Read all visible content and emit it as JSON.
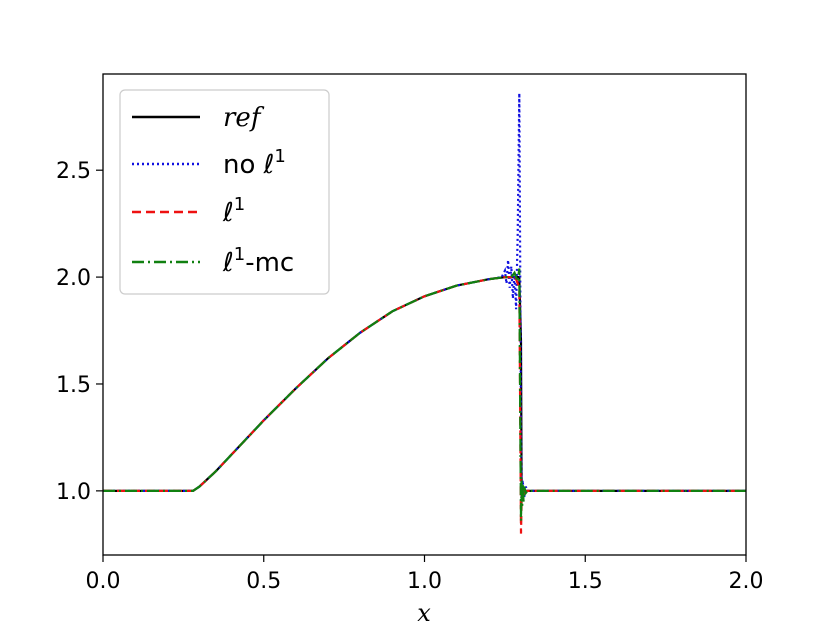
{
  "chart_data": {
    "type": "line",
    "xlabel": "x",
    "ylabel": "",
    "xlim": [
      0.0,
      2.0
    ],
    "ylim": [
      0.7,
      2.95
    ],
    "xticks": [
      "0.0",
      "0.5",
      "1.0",
      "1.5",
      "2.0"
    ],
    "xtick_values": [
      0.0,
      0.5,
      1.0,
      1.5,
      2.0
    ],
    "yticks": [
      "1.0",
      "1.5",
      "2.0",
      "2.5"
    ],
    "ytick_values": [
      1.0,
      1.5,
      2.0,
      2.5
    ],
    "grid": false,
    "legend_position": "top-left",
    "series": [
      {
        "name": "ref",
        "color": "#000000",
        "style": "solid",
        "x": [
          0.0,
          0.28,
          0.3,
          0.35,
          0.4,
          0.5,
          0.6,
          0.7,
          0.8,
          0.9,
          1.0,
          1.1,
          1.2,
          1.25,
          1.28,
          1.295,
          1.3,
          1.302,
          1.31,
          1.4,
          1.5,
          2.0
        ],
        "y": [
          1.0,
          1.0,
          1.02,
          1.09,
          1.17,
          1.33,
          1.48,
          1.62,
          1.74,
          1.84,
          1.91,
          1.96,
          1.99,
          2.0,
          2.0,
          2.0,
          1.7,
          1.0,
          1.0,
          1.0,
          1.0,
          1.0
        ]
      },
      {
        "name": "no ℓ1",
        "color": "#1010e0",
        "style": "dotted",
        "x": [
          0.0,
          0.28,
          0.3,
          0.35,
          0.4,
          0.5,
          0.6,
          0.7,
          0.8,
          0.9,
          1.0,
          1.1,
          1.2,
          1.24,
          1.25,
          1.255,
          1.26,
          1.265,
          1.27,
          1.275,
          1.28,
          1.285,
          1.29,
          1.295,
          1.3,
          1.302,
          1.305,
          1.31,
          1.315,
          1.32,
          1.4,
          1.5,
          2.0
        ],
        "y": [
          1.0,
          1.0,
          1.02,
          1.09,
          1.17,
          1.33,
          1.48,
          1.62,
          1.74,
          1.84,
          1.91,
          1.96,
          1.99,
          2.0,
          2.03,
          1.97,
          2.08,
          1.95,
          2.05,
          1.9,
          2.02,
          1.85,
          2.2,
          2.86,
          1.3,
          0.95,
          1.05,
          0.97,
          1.02,
          1.0,
          1.0,
          1.0,
          1.0
        ]
      },
      {
        "name": "ℓ1",
        "color": "#ee1111",
        "style": "dashed",
        "x": [
          0.0,
          0.28,
          0.3,
          0.35,
          0.4,
          0.5,
          0.6,
          0.7,
          0.8,
          0.9,
          1.0,
          1.1,
          1.2,
          1.25,
          1.27,
          1.28,
          1.29,
          1.295,
          1.298,
          1.3,
          1.302,
          1.305,
          1.31,
          1.32,
          1.4,
          1.5,
          2.0
        ],
        "y": [
          1.0,
          1.0,
          1.02,
          1.09,
          1.17,
          1.33,
          1.48,
          1.62,
          1.74,
          1.84,
          1.91,
          1.96,
          1.99,
          2.0,
          2.0,
          2.01,
          1.97,
          1.95,
          1.3,
          0.8,
          0.95,
          1.02,
          0.99,
          1.0,
          1.0,
          1.0,
          1.0
        ]
      },
      {
        "name": "ℓ1-mc",
        "color": "#108010",
        "style": "dashdot",
        "x": [
          0.0,
          0.28,
          0.3,
          0.35,
          0.4,
          0.5,
          0.6,
          0.7,
          0.8,
          0.9,
          1.0,
          1.1,
          1.2,
          1.25,
          1.27,
          1.28,
          1.29,
          1.295,
          1.298,
          1.3,
          1.302,
          1.304,
          1.306,
          1.308,
          1.31,
          1.315,
          1.32,
          1.4,
          1.5,
          2.0
        ],
        "y": [
          1.0,
          1.0,
          1.02,
          1.09,
          1.17,
          1.33,
          1.48,
          1.62,
          1.74,
          1.84,
          1.91,
          1.96,
          1.99,
          2.0,
          2.0,
          2.02,
          1.98,
          2.04,
          1.3,
          0.86,
          1.05,
          0.93,
          1.03,
          0.95,
          1.02,
          0.99,
          1.0,
          1.0,
          1.0,
          1.0
        ]
      }
    ]
  },
  "legend": {
    "items": [
      {
        "label": "ref",
        "italic": true
      },
      {
        "label": "no ℓ",
        "sup": "1",
        "italic": false
      },
      {
        "label": "ℓ",
        "sup": "1",
        "italic": false
      },
      {
        "label": "ℓ",
        "sup": "1",
        "suffix": "-mc",
        "italic": false
      }
    ]
  }
}
